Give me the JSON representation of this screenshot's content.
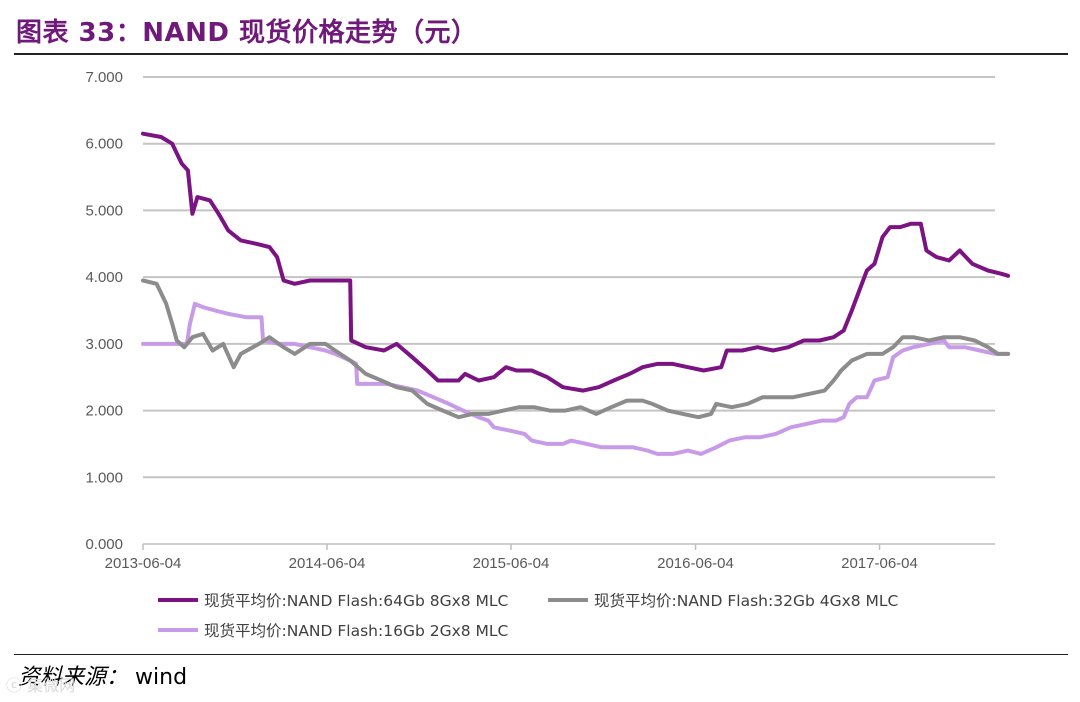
{
  "header": {
    "title": "图表 33：NAND 现货价格走势（元）"
  },
  "footer": {
    "source_label": "资料来源：",
    "source_value": "wind",
    "watermark": "ⓒ 集微网"
  },
  "chart_data": {
    "type": "line",
    "title": "图表 33：NAND 现货价格走势（元）",
    "xlabel": "",
    "ylabel": "",
    "ylim": [
      0,
      7
    ],
    "y_ticks": [
      "0.000",
      "1.000",
      "2.000",
      "3.000",
      "4.000",
      "5.000",
      "6.000",
      "7.000"
    ],
    "x_ticks": [
      "2013-06-04",
      "2014-06-04",
      "2015-06-04",
      "2016-06-04",
      "2017-06-04"
    ],
    "grid": true,
    "legend_position": "bottom",
    "series": [
      {
        "name": "现货平均价:NAND Flash:64Gb 8Gx8 MLC",
        "color": "#7b1482",
        "points": [
          [
            "2013-06-04",
            6.15
          ],
          [
            "2013-07-10",
            6.1
          ],
          [
            "2013-08-01",
            6.0
          ],
          [
            "2013-08-20",
            5.7
          ],
          [
            "2013-09-01",
            5.6
          ],
          [
            "2013-09-10",
            4.95
          ],
          [
            "2013-09-20",
            5.2
          ],
          [
            "2013-10-15",
            5.15
          ],
          [
            "2013-11-01",
            4.95
          ],
          [
            "2013-11-20",
            4.7
          ],
          [
            "2013-12-15",
            4.55
          ],
          [
            "2014-01-15",
            4.5
          ],
          [
            "2014-02-10",
            4.45
          ],
          [
            "2014-02-25",
            4.3
          ],
          [
            "2014-03-10",
            3.95
          ],
          [
            "2014-04-01",
            3.9
          ],
          [
            "2014-05-01",
            3.95
          ],
          [
            "2014-06-10",
            3.95
          ],
          [
            "2014-07-20",
            3.95
          ],
          [
            "2014-07-22",
            3.05
          ],
          [
            "2014-08-20",
            2.95
          ],
          [
            "2014-09-25",
            2.9
          ],
          [
            "2014-10-20",
            3.0
          ],
          [
            "2014-11-20",
            2.8
          ],
          [
            "2014-12-20",
            2.6
          ],
          [
            "2015-01-10",
            2.45
          ],
          [
            "2015-02-20",
            2.45
          ],
          [
            "2015-03-05",
            2.55
          ],
          [
            "2015-04-01",
            2.45
          ],
          [
            "2015-05-01",
            2.5
          ],
          [
            "2015-05-25",
            2.65
          ],
          [
            "2015-06-15",
            2.6
          ],
          [
            "2015-07-15",
            2.6
          ],
          [
            "2015-08-15",
            2.5
          ],
          [
            "2015-09-15",
            2.35
          ],
          [
            "2015-10-25",
            2.3
          ],
          [
            "2015-11-25",
            2.35
          ],
          [
            "2015-12-25",
            2.45
          ],
          [
            "2016-01-25",
            2.55
          ],
          [
            "2016-02-20",
            2.65
          ],
          [
            "2016-03-20",
            2.7
          ],
          [
            "2016-04-20",
            2.7
          ],
          [
            "2016-05-20",
            2.65
          ],
          [
            "2016-06-20",
            2.6
          ],
          [
            "2016-07-25",
            2.65
          ],
          [
            "2016-08-05",
            2.9
          ],
          [
            "2016-09-05",
            2.9
          ],
          [
            "2016-10-05",
            2.95
          ],
          [
            "2016-11-05",
            2.9
          ],
          [
            "2016-12-05",
            2.95
          ],
          [
            "2017-01-05",
            3.05
          ],
          [
            "2017-02-05",
            3.05
          ],
          [
            "2017-03-05",
            3.1
          ],
          [
            "2017-03-25",
            3.2
          ],
          [
            "2017-04-10",
            3.5
          ],
          [
            "2017-04-25",
            3.8
          ],
          [
            "2017-05-10",
            4.1
          ],
          [
            "2017-05-25",
            4.2
          ],
          [
            "2017-06-10",
            4.6
          ],
          [
            "2017-06-25",
            4.75
          ],
          [
            "2017-07-15",
            4.75
          ],
          [
            "2017-08-05",
            4.8
          ],
          [
            "2017-08-25",
            4.8
          ],
          [
            "2017-09-05",
            4.4
          ],
          [
            "2017-09-25",
            4.3
          ],
          [
            "2017-10-20",
            4.25
          ],
          [
            "2017-11-10",
            4.4
          ],
          [
            "2017-12-05",
            4.2
          ],
          [
            "2018-01-05",
            4.1
          ],
          [
            "2018-02-01",
            4.05
          ],
          [
            "2018-02-14",
            4.02
          ]
        ]
      },
      {
        "name": "现货平均价:NAND Flash:32Gb 4Gx8 MLC",
        "color": "#8c8c8c",
        "points": [
          [
            "2013-06-04",
            3.95
          ],
          [
            "2013-07-01",
            3.9
          ],
          [
            "2013-07-20",
            3.6
          ],
          [
            "2013-08-01",
            3.3
          ],
          [
            "2013-08-10",
            3.05
          ],
          [
            "2013-08-25",
            2.95
          ],
          [
            "2013-09-10",
            3.1
          ],
          [
            "2013-10-01",
            3.15
          ],
          [
            "2013-10-20",
            2.9
          ],
          [
            "2013-11-10",
            3.0
          ],
          [
            "2013-12-01",
            2.65
          ],
          [
            "2013-12-15",
            2.85
          ],
          [
            "2014-01-20",
            3.0
          ],
          [
            "2014-02-10",
            3.1
          ],
          [
            "2014-03-10",
            2.95
          ],
          [
            "2014-04-01",
            2.85
          ],
          [
            "2014-05-01",
            3.0
          ],
          [
            "2014-06-01",
            3.0
          ],
          [
            "2014-06-20",
            2.9
          ],
          [
            "2014-07-20",
            2.75
          ],
          [
            "2014-08-20",
            2.55
          ],
          [
            "2014-09-20",
            2.45
          ],
          [
            "2014-10-20",
            2.35
          ],
          [
            "2014-11-20",
            2.3
          ],
          [
            "2014-12-20",
            2.1
          ],
          [
            "2015-01-20",
            2.0
          ],
          [
            "2015-02-20",
            1.9
          ],
          [
            "2015-03-20",
            1.95
          ],
          [
            "2015-04-20",
            1.95
          ],
          [
            "2015-05-20",
            2.0
          ],
          [
            "2015-06-20",
            2.05
          ],
          [
            "2015-07-20",
            2.05
          ],
          [
            "2015-08-20",
            2.0
          ],
          [
            "2015-09-20",
            2.0
          ],
          [
            "2015-10-20",
            2.05
          ],
          [
            "2015-11-20",
            1.95
          ],
          [
            "2015-12-20",
            2.05
          ],
          [
            "2016-01-20",
            2.15
          ],
          [
            "2016-02-20",
            2.15
          ],
          [
            "2016-03-10",
            2.1
          ],
          [
            "2016-04-10",
            2.0
          ],
          [
            "2016-05-10",
            1.95
          ],
          [
            "2016-06-10",
            1.9
          ],
          [
            "2016-07-05",
            1.95
          ],
          [
            "2016-07-15",
            2.1
          ],
          [
            "2016-08-15",
            2.05
          ],
          [
            "2016-09-15",
            2.1
          ],
          [
            "2016-10-15",
            2.2
          ],
          [
            "2016-11-15",
            2.2
          ],
          [
            "2016-12-15",
            2.2
          ],
          [
            "2017-01-15",
            2.25
          ],
          [
            "2017-02-15",
            2.3
          ],
          [
            "2017-03-05",
            2.45
          ],
          [
            "2017-03-20",
            2.6
          ],
          [
            "2017-04-10",
            2.75
          ],
          [
            "2017-05-10",
            2.85
          ],
          [
            "2017-06-10",
            2.85
          ],
          [
            "2017-07-01",
            2.95
          ],
          [
            "2017-07-20",
            3.1
          ],
          [
            "2017-08-10",
            3.1
          ],
          [
            "2017-09-10",
            3.05
          ],
          [
            "2017-10-10",
            3.1
          ],
          [
            "2017-11-10",
            3.1
          ],
          [
            "2017-12-10",
            3.05
          ],
          [
            "2018-01-05",
            2.95
          ],
          [
            "2018-01-25",
            2.85
          ],
          [
            "2018-02-14",
            2.85
          ]
        ]
      },
      {
        "name": "现货平均价:NAND Flash:16Gb 2Gx8 MLC",
        "color": "#c89be8",
        "points": [
          [
            "2013-06-04",
            3.0
          ],
          [
            "2013-08-30",
            3.0
          ],
          [
            "2013-09-05",
            3.3
          ],
          [
            "2013-09-15",
            3.6
          ],
          [
            "2013-10-01",
            3.55
          ],
          [
            "2013-10-25",
            3.5
          ],
          [
            "2013-11-20",
            3.45
          ],
          [
            "2013-12-25",
            3.4
          ],
          [
            "2014-01-25",
            3.4
          ],
          [
            "2014-01-28",
            3.05
          ],
          [
            "2014-03-01",
            3.0
          ],
          [
            "2014-04-01",
            3.0
          ],
          [
            "2014-05-01",
            2.95
          ],
          [
            "2014-06-01",
            2.9
          ],
          [
            "2014-06-20",
            2.85
          ],
          [
            "2014-07-20",
            2.75
          ],
          [
            "2014-08-01",
            2.7
          ],
          [
            "2014-08-03",
            2.4
          ],
          [
            "2014-09-01",
            2.4
          ],
          [
            "2014-10-01",
            2.4
          ],
          [
            "2014-11-01",
            2.35
          ],
          [
            "2014-12-01",
            2.3
          ],
          [
            "2015-01-01",
            2.2
          ],
          [
            "2015-02-01",
            2.1
          ],
          [
            "2015-03-01",
            2.0
          ],
          [
            "2015-04-01",
            1.9
          ],
          [
            "2015-04-20",
            1.85
          ],
          [
            "2015-05-01",
            1.75
          ],
          [
            "2015-06-01",
            1.7
          ],
          [
            "2015-07-01",
            1.65
          ],
          [
            "2015-07-15",
            1.55
          ],
          [
            "2015-08-15",
            1.5
          ],
          [
            "2015-09-15",
            1.5
          ],
          [
            "2015-10-01",
            1.55
          ],
          [
            "2015-11-01",
            1.5
          ],
          [
            "2015-12-01",
            1.45
          ],
          [
            "2016-01-01",
            1.45
          ],
          [
            "2016-02-01",
            1.45
          ],
          [
            "2016-03-01",
            1.4
          ],
          [
            "2016-03-20",
            1.35
          ],
          [
            "2016-04-20",
            1.35
          ],
          [
            "2016-05-20",
            1.4
          ],
          [
            "2016-06-15",
            1.35
          ],
          [
            "2016-07-15",
            1.45
          ],
          [
            "2016-08-10",
            1.55
          ],
          [
            "2016-09-10",
            1.6
          ],
          [
            "2016-10-10",
            1.6
          ],
          [
            "2016-11-10",
            1.65
          ],
          [
            "2016-12-10",
            1.75
          ],
          [
            "2017-01-10",
            1.8
          ],
          [
            "2017-02-10",
            1.85
          ],
          [
            "2017-03-10",
            1.85
          ],
          [
            "2017-03-25",
            1.9
          ],
          [
            "2017-04-05",
            2.1
          ],
          [
            "2017-04-20",
            2.2
          ],
          [
            "2017-05-10",
            2.2
          ],
          [
            "2017-05-25",
            2.45
          ],
          [
            "2017-06-20",
            2.5
          ],
          [
            "2017-07-01",
            2.8
          ],
          [
            "2017-07-20",
            2.9
          ],
          [
            "2017-08-10",
            2.95
          ],
          [
            "2017-09-10",
            3.0
          ],
          [
            "2017-10-10",
            3.05
          ],
          [
            "2017-10-20",
            2.95
          ],
          [
            "2017-11-20",
            2.95
          ],
          [
            "2017-12-20",
            2.9
          ],
          [
            "2018-01-20",
            2.85
          ],
          [
            "2018-02-14",
            2.85
          ]
        ]
      }
    ]
  }
}
